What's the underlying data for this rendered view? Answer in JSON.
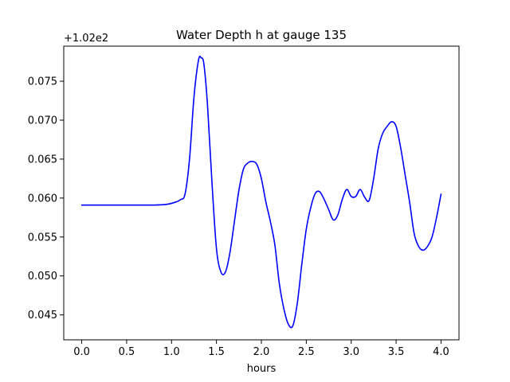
{
  "chart_data": {
    "type": "line",
    "title": "Water Depth h at gauge 135",
    "xlabel": "hours",
    "ylabel": "",
    "offset_label": "+1.02e2",
    "xlim": [
      -0.2,
      4.2
    ],
    "ylim": [
      0.0418,
      0.0795
    ],
    "x_ticks": [
      0.0,
      0.5,
      1.0,
      1.5,
      2.0,
      2.5,
      3.0,
      3.5,
      4.0
    ],
    "x_tick_labels": [
      "0.0",
      "0.5",
      "1.0",
      "1.5",
      "2.0",
      "2.5",
      "3.0",
      "3.5",
      "4.0"
    ],
    "y_ticks": [
      0.045,
      0.05,
      0.055,
      0.06,
      0.065,
      0.07,
      0.075
    ],
    "y_tick_labels": [
      "0.045",
      "0.050",
      "0.055",
      "0.060",
      "0.065",
      "0.070",
      "0.075"
    ],
    "grid": false,
    "series": [
      {
        "name": "",
        "color": "#0000ff",
        "x": [
          0.0,
          0.3,
          0.6,
          0.8,
          0.95,
          1.05,
          1.1,
          1.15,
          1.2,
          1.25,
          1.3,
          1.33,
          1.36,
          1.4,
          1.45,
          1.5,
          1.55,
          1.6,
          1.65,
          1.7,
          1.75,
          1.8,
          1.85,
          1.9,
          1.95,
          2.0,
          2.05,
          2.1,
          2.15,
          2.2,
          2.25,
          2.3,
          2.35,
          2.4,
          2.45,
          2.5,
          2.55,
          2.6,
          2.65,
          2.7,
          2.75,
          2.8,
          2.85,
          2.9,
          2.95,
          3.0,
          3.05,
          3.1,
          3.15,
          3.2,
          3.25,
          3.3,
          3.35,
          3.4,
          3.45,
          3.5,
          3.55,
          3.6,
          3.65,
          3.7,
          3.75,
          3.8,
          3.85,
          3.9,
          3.95,
          4.0
        ],
        "y": [
          0.0591,
          0.0591,
          0.0591,
          0.0591,
          0.0592,
          0.0595,
          0.0598,
          0.0605,
          0.065,
          0.073,
          0.0777,
          0.078,
          0.0772,
          0.072,
          0.062,
          0.0535,
          0.0505,
          0.0505,
          0.053,
          0.057,
          0.061,
          0.0637,
          0.0645,
          0.0647,
          0.0643,
          0.0625,
          0.0595,
          0.057,
          0.054,
          0.049,
          0.0458,
          0.0438,
          0.0436,
          0.0465,
          0.0515,
          0.056,
          0.0588,
          0.0606,
          0.0608,
          0.0598,
          0.0585,
          0.0572,
          0.0578,
          0.0598,
          0.0611,
          0.0602,
          0.0602,
          0.0611,
          0.0601,
          0.0597,
          0.0625,
          0.0663,
          0.0683,
          0.0692,
          0.0698,
          0.0692,
          0.0665,
          0.063,
          0.0595,
          0.0555,
          0.0538,
          0.0533,
          0.0538,
          0.055,
          0.0575,
          0.0605
        ]
      }
    ]
  }
}
